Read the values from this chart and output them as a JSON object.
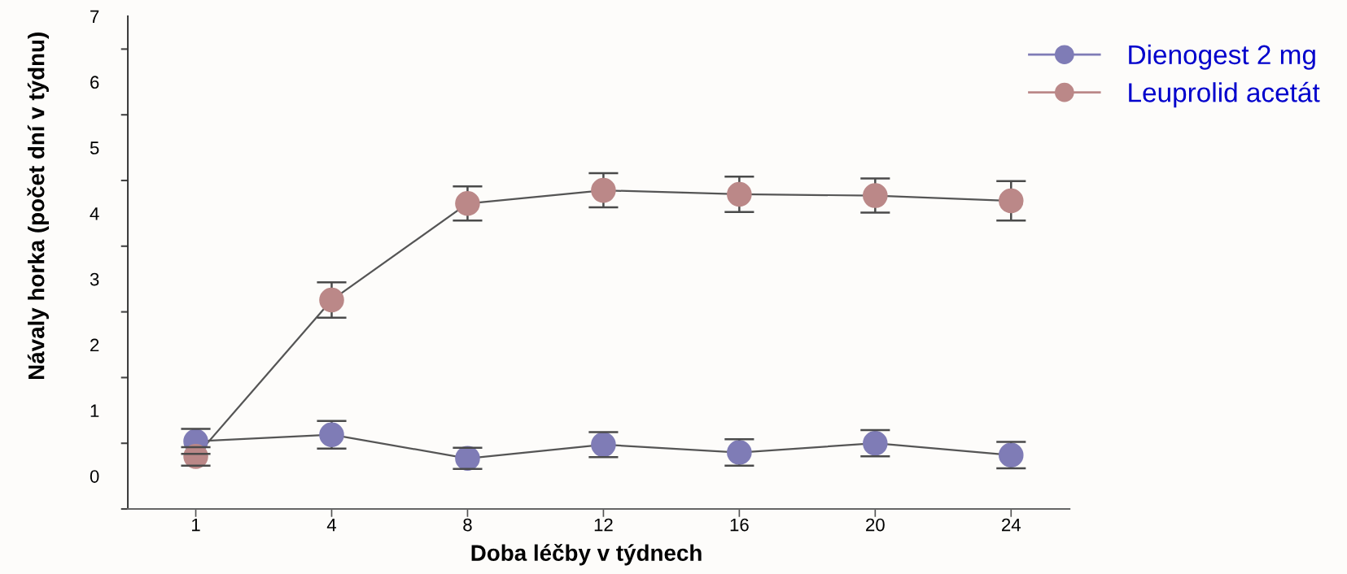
{
  "chart_data": {
    "type": "line",
    "xlabel": "Doba léčby v týdnech",
    "ylabel": "Návaly horka (počet dní v týdnu)",
    "categories": [
      "1",
      "4",
      "8",
      "12",
      "16",
      "20",
      "24"
    ],
    "series": [
      {
        "name": "Dienogest 2 mg",
        "color": "#7f7cb6",
        "values": [
          0.53,
          0.63,
          0.27,
          0.48,
          0.36,
          0.5,
          0.32
        ],
        "errors": [
          0.19,
          0.21,
          0.16,
          0.19,
          0.2,
          0.2,
          0.2
        ]
      },
      {
        "name": "Leuprolid acetát",
        "color": "#bb8888",
        "values": [
          0.3,
          2.68,
          4.15,
          4.35,
          4.29,
          4.27,
          4.19
        ],
        "errors": [
          0.14,
          0.27,
          0.26,
          0.26,
          0.27,
          0.26,
          0.3
        ]
      }
    ],
    "ylim": [
      -0.5,
      7
    ],
    "yticks": [
      {
        "value": -0.5,
        "label": null
      },
      0,
      {
        "value": 0.5,
        "label": null
      },
      1,
      {
        "value": 1.5,
        "label": null
      },
      2,
      {
        "value": 2.5,
        "label": null
      },
      3,
      {
        "value": 3.5,
        "label": null
      },
      4,
      {
        "value": 4.5,
        "label": null
      },
      5,
      {
        "value": 5.5,
        "label": null
      },
      6,
      {
        "value": 6.5,
        "label": null
      },
      7
    ],
    "marker": "circle",
    "line_style": "solid",
    "legend": "top right",
    "grid": false
  }
}
